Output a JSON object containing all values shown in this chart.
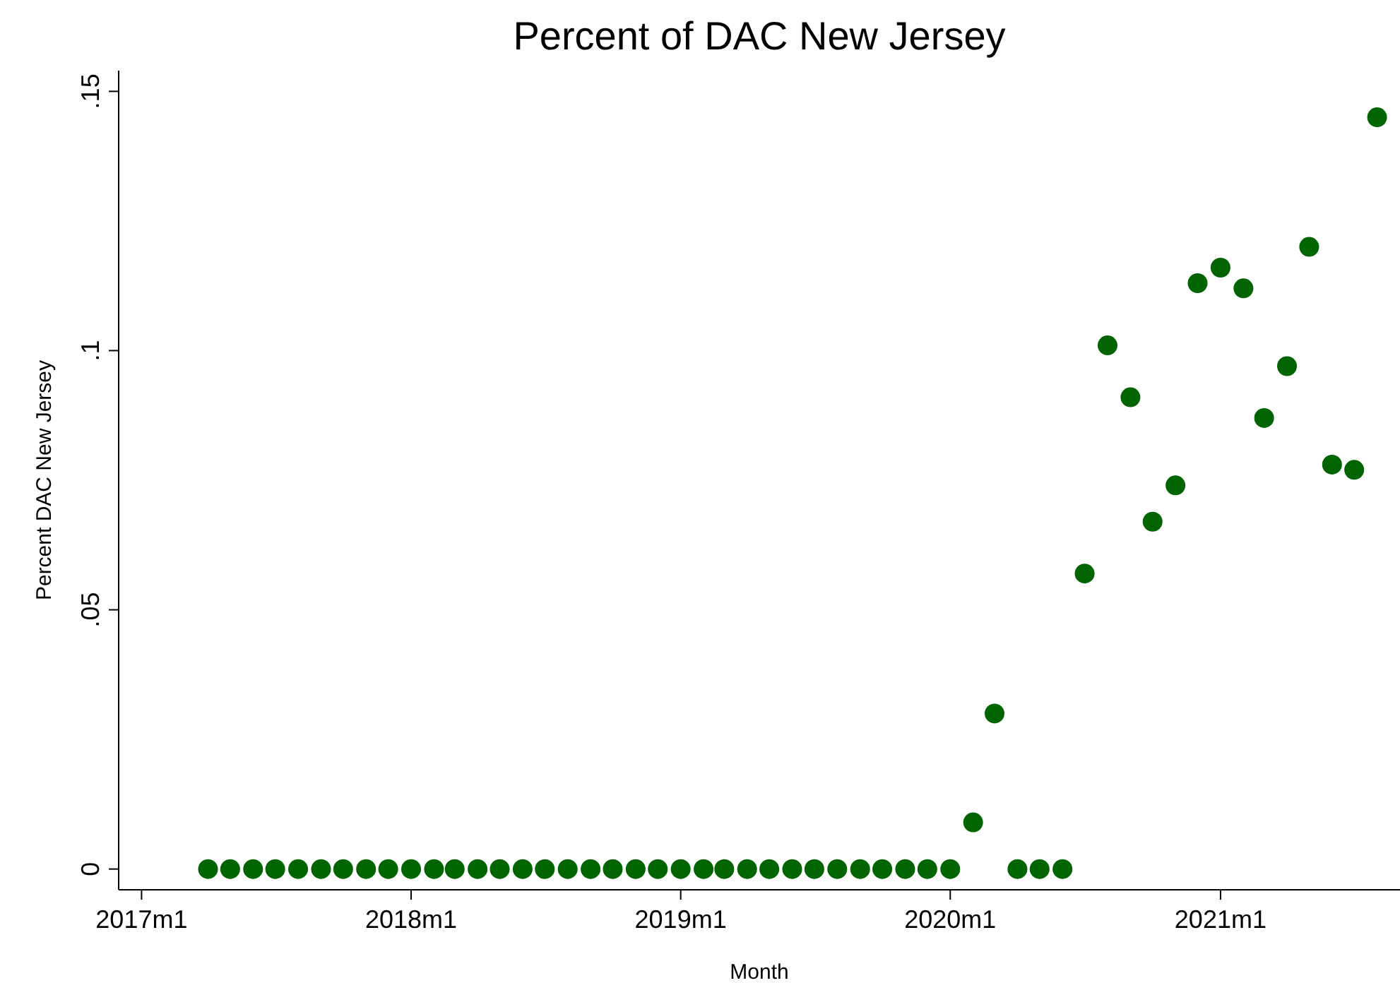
{
  "chart_data": {
    "type": "scatter",
    "title": "Percent of DAC New Jersey",
    "xlabel": "Month",
    "ylabel": "Percent DAC New Jersey",
    "x": [
      "2017-04",
      "2017-05",
      "2017-06",
      "2017-07",
      "2017-08",
      "2017-09",
      "2017-10",
      "2017-11",
      "2017-12",
      "2018-01",
      "2018-02",
      "2018-03",
      "2018-04",
      "2018-05",
      "2018-06",
      "2018-07",
      "2018-08",
      "2018-09",
      "2018-10",
      "2018-11",
      "2018-12",
      "2019-01",
      "2019-02",
      "2019-03",
      "2019-04",
      "2019-05",
      "2019-06",
      "2019-07",
      "2019-08",
      "2019-09",
      "2019-10",
      "2019-11",
      "2019-12",
      "2020-01",
      "2020-02",
      "2020-03",
      "2020-04",
      "2020-05",
      "2020-06",
      "2020-07",
      "2020-08",
      "2020-09",
      "2020-10",
      "2020-11",
      "2020-12",
      "2021-01",
      "2021-02",
      "2021-03",
      "2021-04",
      "2021-05",
      "2021-06",
      "2021-07",
      "2021-08"
    ],
    "series": [
      {
        "color": "#006400",
        "values": [
          0,
          0,
          0,
          0,
          0,
          0,
          0,
          0,
          0,
          0,
          0,
          0,
          0,
          0,
          0,
          0,
          0,
          0,
          0,
          0,
          0,
          0,
          0,
          0,
          0,
          0,
          0,
          0,
          0,
          0,
          0,
          0,
          0,
          0,
          0.009,
          0.03,
          0,
          0,
          0,
          0.057,
          0.101,
          0.091,
          0.067,
          0.074,
          0.113,
          0.116,
          0.112,
          0.087,
          0.097,
          0.12,
          0.078,
          0.077,
          0.145
        ]
      }
    ],
    "marker": "circle",
    "xlim": [
      "2016-12",
      "2021-09"
    ],
    "xticks": [
      {
        "value": "2017-01",
        "label": "2017m1"
      },
      {
        "value": "2018-01",
        "label": "2018m1"
      },
      {
        "value": "2019-01",
        "label": "2019m1"
      },
      {
        "value": "2020-01",
        "label": "2020m1"
      },
      {
        "value": "2021-01",
        "label": "2021m1"
      }
    ],
    "ylim": [
      -0.004,
      0.154
    ],
    "yticks": [
      {
        "value": 0,
        "label": "0"
      },
      {
        "value": 0.05,
        "label": ".05"
      },
      {
        "value": 0.1,
        "label": ".1"
      },
      {
        "value": 0.15,
        "label": ".15"
      }
    ]
  }
}
